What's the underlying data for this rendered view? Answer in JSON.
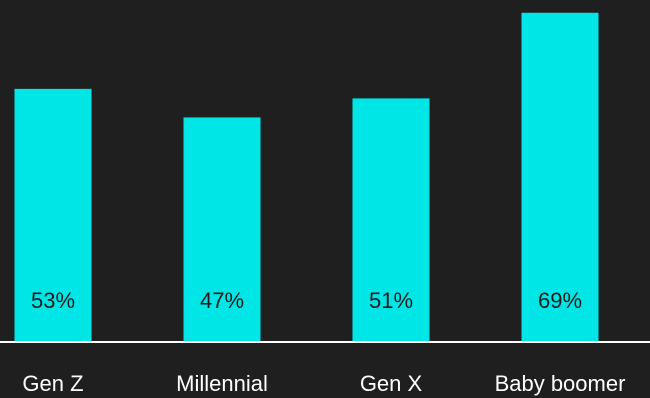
{
  "chart_data": {
    "type": "bar",
    "categories": [
      "Gen Z",
      "Millennial",
      "Gen X",
      "Baby boomer"
    ],
    "values": [
      53,
      47,
      51,
      69
    ],
    "value_labels": [
      "53%",
      "47%",
      "51%",
      "69%"
    ],
    "ylim": [
      0,
      70
    ],
    "grid": false,
    "legend": "none",
    "colors": {
      "background": "#201f1f",
      "bar": "#00e5e5",
      "axis": "#ffffff",
      "category_text": "#ffffff",
      "value_text": "#1b1b1b"
    }
  }
}
